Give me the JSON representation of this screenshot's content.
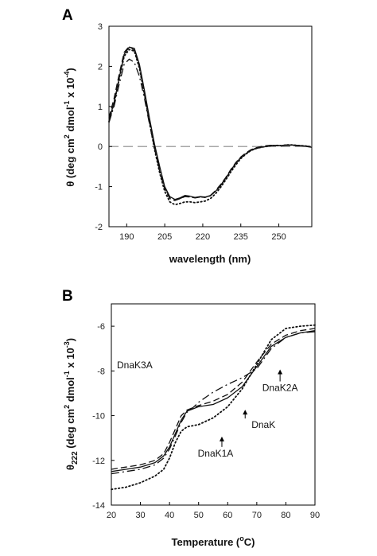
{
  "chart_data": [
    {
      "panel_label": "A",
      "type": "line",
      "xlabel": "wavelength (nm)",
      "ylabel_main": "θ (deg cm",
      "ylabel_sup1": "2",
      "ylabel_mid": " dmol",
      "ylabel_sup2": "-1",
      "ylabel_end": " x 10",
      "ylabel_sup3": "-4",
      "ylabel_close": ")",
      "xlim": [
        183,
        263
      ],
      "ylim": [
        -2,
        3
      ],
      "xticks": [
        190,
        205,
        220,
        235,
        250
      ],
      "yticks": [
        -2,
        -1,
        0,
        1,
        2,
        3
      ],
      "reference_line": 0,
      "series": [
        {
          "style": "solid",
          "x": [
            183,
            185,
            187,
            189,
            191,
            193,
            195,
            197,
            199,
            201,
            203,
            205,
            207,
            209,
            211,
            213,
            215,
            217,
            219,
            221,
            223,
            225,
            227,
            229,
            231,
            233,
            235,
            237,
            239,
            241,
            243,
            245,
            247,
            249,
            251,
            253,
            255,
            257,
            259,
            261,
            263
          ],
          "y": [
            0.65,
            1.1,
            1.7,
            2.3,
            2.48,
            2.45,
            2.05,
            1.4,
            0.7,
            0.05,
            -0.5,
            -1.0,
            -1.25,
            -1.32,
            -1.28,
            -1.22,
            -1.24,
            -1.27,
            -1.25,
            -1.26,
            -1.22,
            -1.12,
            -0.98,
            -0.8,
            -0.6,
            -0.42,
            -0.28,
            -0.18,
            -0.1,
            -0.05,
            -0.02,
            0.0,
            0.02,
            0.03,
            0.02,
            0.03,
            0.04,
            0.03,
            0.02,
            0.0,
            -0.02
          ]
        },
        {
          "style": "dashed",
          "x": [
            183,
            185,
            187,
            189,
            191,
            193,
            195,
            197,
            199,
            201,
            203,
            205,
            207,
            209,
            211,
            213,
            215,
            217,
            219,
            221,
            223,
            225,
            227,
            229,
            231,
            233,
            235,
            237,
            239,
            241,
            243,
            245,
            247,
            249,
            251,
            253,
            255,
            257,
            259,
            261,
            263
          ],
          "y": [
            0.72,
            1.2,
            1.8,
            2.35,
            2.5,
            2.4,
            1.98,
            1.3,
            0.6,
            -0.05,
            -0.62,
            -1.05,
            -1.3,
            -1.35,
            -1.3,
            -1.25,
            -1.26,
            -1.28,
            -1.26,
            -1.27,
            -1.22,
            -1.1,
            -0.95,
            -0.78,
            -0.58,
            -0.4,
            -0.26,
            -0.16,
            -0.08,
            -0.03,
            0.0,
            0.02,
            0.03,
            0.02,
            0.03,
            0.04,
            0.03,
            0.02,
            0.02,
            0.01,
            0.0
          ]
        },
        {
          "style": "dashdot",
          "x": [
            183,
            185,
            187,
            189,
            191,
            193,
            195,
            197,
            199,
            201,
            203,
            205,
            207,
            209,
            211,
            213,
            215,
            217,
            219,
            221,
            223,
            225,
            227,
            229,
            231,
            233,
            235,
            237,
            239,
            241,
            243,
            245,
            247,
            249,
            251,
            253,
            255,
            257,
            259,
            261,
            263
          ],
          "y": [
            0.6,
            1.0,
            1.55,
            2.05,
            2.18,
            2.1,
            1.75,
            1.2,
            0.55,
            -0.05,
            -0.58,
            -1.02,
            -1.28,
            -1.35,
            -1.3,
            -1.24,
            -1.26,
            -1.28,
            -1.26,
            -1.27,
            -1.23,
            -1.12,
            -0.97,
            -0.79,
            -0.6,
            -0.42,
            -0.27,
            -0.17,
            -0.09,
            -0.04,
            -0.01,
            0.01,
            0.03,
            0.02,
            0.03,
            0.03,
            0.03,
            0.02,
            0.02,
            0.0,
            -0.01
          ]
        },
        {
          "style": "dotted",
          "x": [
            183,
            185,
            187,
            189,
            191,
            193,
            195,
            197,
            199,
            201,
            203,
            205,
            207,
            209,
            211,
            213,
            215,
            217,
            219,
            221,
            223,
            225,
            227,
            229,
            231,
            233,
            235,
            237,
            239,
            241,
            243,
            245,
            247,
            249,
            251,
            253,
            255,
            257,
            259,
            261,
            263
          ],
          "y": [
            0.62,
            1.08,
            1.68,
            2.25,
            2.42,
            2.38,
            1.95,
            1.3,
            0.6,
            -0.08,
            -0.66,
            -1.12,
            -1.38,
            -1.45,
            -1.42,
            -1.38,
            -1.38,
            -1.4,
            -1.38,
            -1.36,
            -1.3,
            -1.18,
            -1.02,
            -0.84,
            -0.64,
            -0.46,
            -0.3,
            -0.19,
            -0.1,
            -0.05,
            -0.02,
            0.0,
            0.02,
            0.03,
            0.02,
            0.04,
            0.04,
            0.03,
            0.02,
            0.01,
            -0.01
          ]
        }
      ]
    },
    {
      "panel_label": "B",
      "type": "line",
      "xlabel_main": "Temperature (",
      "xlabel_sup": "o",
      "xlabel_end": "C)",
      "ylabel_theta": "θ",
      "ylabel_sub": "222",
      "ylabel_main": " (deg cm",
      "ylabel_sup1": "2",
      "ylabel_mid": " dmol",
      "ylabel_sup2": "-1",
      "ylabel_end": " x 10",
      "ylabel_sup3": "-3",
      "ylabel_close": ")",
      "xlim": [
        20,
        90
      ],
      "ylim": [
        -14,
        -5
      ],
      "xticks": [
        20,
        30,
        40,
        50,
        60,
        70,
        80,
        90
      ],
      "yticks": [
        -14,
        -12,
        -10,
        -8,
        -6
      ],
      "series": [
        {
          "name": "DnaK",
          "style": "solid",
          "x": [
            20,
            25,
            30,
            35,
            38,
            40,
            42,
            44,
            46,
            48,
            50,
            55,
            60,
            65,
            70,
            75,
            80,
            85,
            90
          ],
          "y": [
            -12.5,
            -12.4,
            -12.3,
            -12.1,
            -11.8,
            -11.4,
            -10.8,
            -10.2,
            -9.8,
            -9.7,
            -9.6,
            -9.5,
            -9.2,
            -8.7,
            -7.8,
            -6.9,
            -6.5,
            -6.3,
            -6.2
          ]
        },
        {
          "name": "DnaK1A",
          "style": "dotted",
          "x": [
            20,
            25,
            30,
            35,
            38,
            40,
            42,
            44,
            46,
            48,
            50,
            55,
            60,
            65,
            70,
            75,
            80,
            85,
            90
          ],
          "y": [
            -13.3,
            -13.2,
            -13.0,
            -12.7,
            -12.4,
            -11.9,
            -11.2,
            -10.7,
            -10.5,
            -10.45,
            -10.4,
            -10.1,
            -9.6,
            -8.8,
            -7.7,
            -6.6,
            -6.1,
            -6.0,
            -5.95
          ]
        },
        {
          "name": "DnaK2A",
          "style": "dashed",
          "x": [
            20,
            25,
            30,
            35,
            38,
            40,
            42,
            44,
            46,
            48,
            50,
            55,
            60,
            65,
            70,
            75,
            80,
            85,
            90
          ],
          "y": [
            -12.4,
            -12.3,
            -12.2,
            -12.0,
            -11.7,
            -11.2,
            -10.6,
            -10.0,
            -9.75,
            -9.65,
            -9.55,
            -9.35,
            -9.05,
            -8.5,
            -7.6,
            -6.8,
            -6.4,
            -6.2,
            -6.1
          ]
        },
        {
          "name": "DnaK3A",
          "style": "dashdot",
          "x": [
            20,
            25,
            30,
            35,
            38,
            40,
            42,
            44,
            46,
            48,
            50,
            55,
            60,
            65,
            70,
            75,
            80,
            85,
            90
          ],
          "y": [
            -12.6,
            -12.5,
            -12.4,
            -12.2,
            -11.9,
            -11.5,
            -10.9,
            -10.3,
            -9.85,
            -9.65,
            -9.4,
            -8.95,
            -8.6,
            -8.3,
            -7.9,
            -7.0,
            -6.5,
            -6.3,
            -6.25
          ]
        }
      ],
      "annotations": [
        {
          "label": "DnaK3A",
          "x": 50,
          "y": -8.6
        },
        {
          "label": "DnaK2A",
          "x": 78,
          "y": -7.9
        },
        {
          "label": "DnaK",
          "x": 66,
          "y": -9.7
        },
        {
          "label": "DnaK1A",
          "x": 58,
          "y": -10.9
        }
      ]
    }
  ]
}
